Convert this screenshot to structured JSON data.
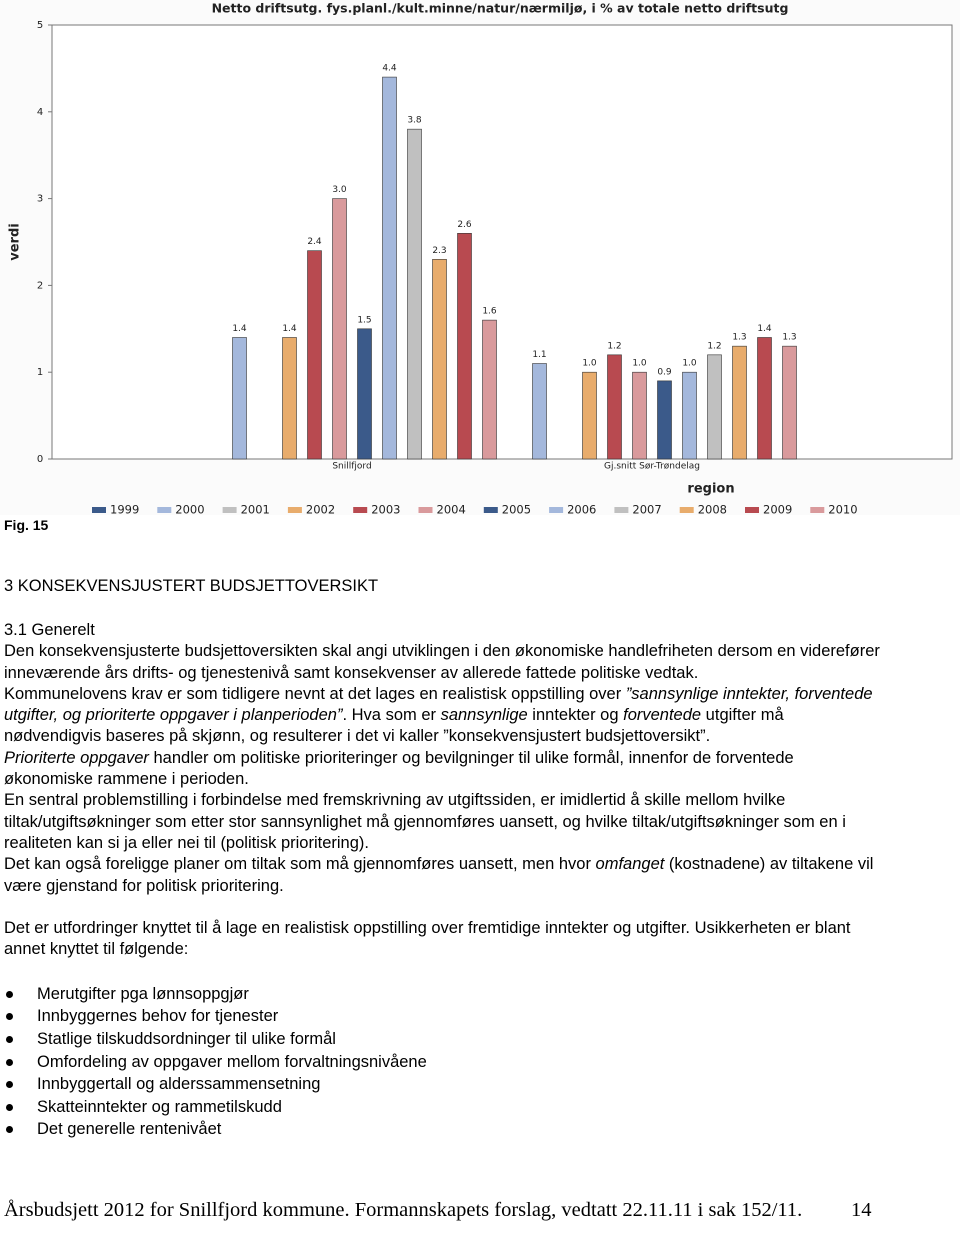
{
  "chart_data": {
    "type": "bar",
    "title": "Netto driftsutg. fys.planl./kult.minne/natur/nærmiljø, i % av totale netto driftsutg",
    "y_label": "verdi",
    "x_label": "region",
    "categories": [
      "Snillfjord",
      "Gj.snitt Sør-Trøndelag"
    ],
    "ylim": [
      0,
      5
    ],
    "yticks": [
      0,
      1,
      2,
      3,
      4,
      5
    ],
    "series": [
      {
        "name": "1999",
        "color": "#3b5a8a",
        "values": [
          null,
          null
        ],
        "value_labels": [
          null,
          null
        ]
      },
      {
        "name": "2000",
        "color": "#a4b8dc",
        "values": [
          1.4,
          1.1
        ],
        "value_labels": [
          "1.4",
          "1.1"
        ]
      },
      {
        "name": "2001",
        "color": "#c0c0c0",
        "values": [
          null,
          null
        ],
        "value_labels": [
          null,
          null
        ]
      },
      {
        "name": "2002",
        "color": "#e8ac6c",
        "values": [
          1.4,
          1.0
        ],
        "value_labels": [
          "1.4",
          "1.0"
        ]
      },
      {
        "name": "2003",
        "color": "#b84a50",
        "values": [
          2.4,
          1.2
        ],
        "value_labels": [
          "2.4",
          "1.2"
        ]
      },
      {
        "name": "2004",
        "color": "#d99a9c",
        "values": [
          3.0,
          1.0
        ],
        "value_labels": [
          "3.0",
          "1.0"
        ]
      },
      {
        "name": "2005",
        "color": "#3b5a8a",
        "values": [
          1.5,
          0.9
        ],
        "value_labels": [
          "1.5",
          "0.9"
        ]
      },
      {
        "name": "2006",
        "color": "#a4b8dc",
        "values": [
          4.4,
          1.0
        ],
        "value_labels": [
          "4.4",
          "1.0"
        ]
      },
      {
        "name": "2007",
        "color": "#c0c0c0",
        "values": [
          3.8,
          1.2
        ],
        "value_labels": [
          "3.8",
          "1.2"
        ]
      },
      {
        "name": "2008",
        "color": "#e8ac6c",
        "values": [
          2.3,
          1.3
        ],
        "value_labels": [
          "2.3",
          "1.3"
        ]
      },
      {
        "name": "2009",
        "color": "#b84a50",
        "values": [
          2.6,
          1.4
        ],
        "value_labels": [
          "2.6",
          "1.4"
        ]
      },
      {
        "name": "2010",
        "color": "#d99a9c",
        "values": [
          1.6,
          1.3
        ],
        "value_labels": [
          "1.6",
          "1.3"
        ]
      }
    ]
  },
  "figure_label": "Fig. 15",
  "heading": "3 KONSEKVENSJUSTERT BUDSJETTOVERSIKT",
  "subheading": "3.1 Generelt",
  "paragraphs": [
    [
      {
        "text": "Den konsekvensjusterte budsjettoversikten skal angi utviklingen i den økonomiske handlefriheten dersom en viderefører inneværende års drifts- og tjenestenivå samt konsekvenser av allerede fattede politiske vedtak.",
        "italic": false
      }
    ],
    [
      {
        "text": "Kommunelovens krav er som tidligere nevnt at det lages en realistisk oppstilling over ",
        "italic": false
      },
      {
        "text": "”sannsynlige inntekter, forventede utgifter, og prioriterte oppgaver i planperioden”",
        "italic": true
      },
      {
        "text": ". Hva som er ",
        "italic": false
      },
      {
        "text": "sannsynlige",
        "italic": true
      },
      {
        "text": " inntekter og ",
        "italic": false
      },
      {
        "text": "forventede",
        "italic": true
      },
      {
        "text": " utgifter må nødvendigvis baseres på skjønn, og resulterer i det vi kaller ”konsekvensjustert budsjettoversikt”.",
        "italic": false
      }
    ],
    [
      {
        "text": "Prioriterte oppgaver",
        "italic": true
      },
      {
        "text": " handler om politiske prioriteringer og bevilgninger til ulike formål, innenfor de forventede økonomiske rammene i perioden.",
        "italic": false
      }
    ],
    [
      {
        "text": "En sentral problemstilling i forbindelse med fremskrivning av utgiftssiden, er imidlertid å skille mellom hvilke tiltak/utgiftsøkninger som etter stor sannsynlighet må gjennomføres uansett, og hvilke tiltak/utgiftsøkninger som en i realiteten kan si ja eller nei til (politisk prioritering).",
        "italic": false
      }
    ],
    [
      {
        "text": "Det kan også foreligge planer om tiltak som må gjennomføres uansett, men hvor ",
        "italic": false
      },
      {
        "text": "omfanget",
        "italic": true
      },
      {
        "text": " (kostnadene) av tiltakene vil være gjenstand for politisk prioritering.",
        "italic": false
      }
    ],
    [
      {
        "text": "Det er utfordringer knyttet til å lage en realistisk oppstilling over fremtidige inntekter og utgifter. Usikkerheten er blant annet knyttet til følgende:",
        "italic": false
      }
    ]
  ],
  "bullets": [
    "Merutgifter pga lønnsoppgjør",
    "Innbyggernes behov for tjenester",
    "Statlige tilskuddsordninger til ulike formål",
    "Omfordeling av oppgaver mellom forvaltningsnivåene",
    "Innbyggertall og alderssammensetning",
    "Skatteinntekter og rammetilskudd",
    "Det generelle rentenivået"
  ],
  "footer": {
    "text": "Årsbudsjett 2012 for Snillfjord kommune. Formannskapets forslag, vedtatt 22.11.11 i sak 152/11.",
    "page": "14"
  }
}
